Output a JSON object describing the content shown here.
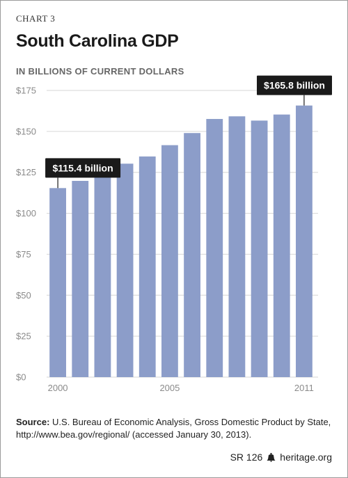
{
  "chart_label": "CHART 3",
  "title": "South Carolina GDP",
  "subtitle": "IN BILLIONS OF CURRENT DOLLARS",
  "chart_data": {
    "type": "bar",
    "categories": [
      "2000",
      "2001",
      "2002",
      "2003",
      "2004",
      "2005",
      "2006",
      "2007",
      "2008",
      "2009",
      "2010",
      "2011"
    ],
    "values": [
      115.4,
      119.8,
      124.3,
      130.3,
      134.7,
      141.6,
      149.0,
      157.6,
      159.2,
      156.6,
      160.3,
      165.8
    ],
    "ylim": [
      0,
      175
    ],
    "y_ticks": [
      "$0",
      "$25",
      "$50",
      "$75",
      "$100",
      "$125",
      "$150",
      "$175"
    ],
    "y_tick_values": [
      0,
      25,
      50,
      75,
      100,
      125,
      150,
      175
    ],
    "x_tick_labels": [
      {
        "category": "2000",
        "label": "2000"
      },
      {
        "category": "2005",
        "label": "2005"
      },
      {
        "category": "2011",
        "label": "2011"
      }
    ],
    "annotations": [
      {
        "category": "2000",
        "text": "$115.4 billion"
      },
      {
        "category": "2011",
        "text": "$165.8 billion"
      }
    ],
    "grid": true,
    "bar_color": "#8c9dc9",
    "grid_color": "#d6d6d6",
    "callout_color": "#1a1a1a"
  },
  "source": {
    "label": "Source:",
    "text": " U.S. Bureau of Economic Analysis, Gross Domestic Product by State, http://www.bea.gov/regional/ (accessed January 30, 2013)."
  },
  "footer": {
    "report_id": "SR 126",
    "icon": "liberty-bell-icon",
    "site": "heritage.org"
  }
}
